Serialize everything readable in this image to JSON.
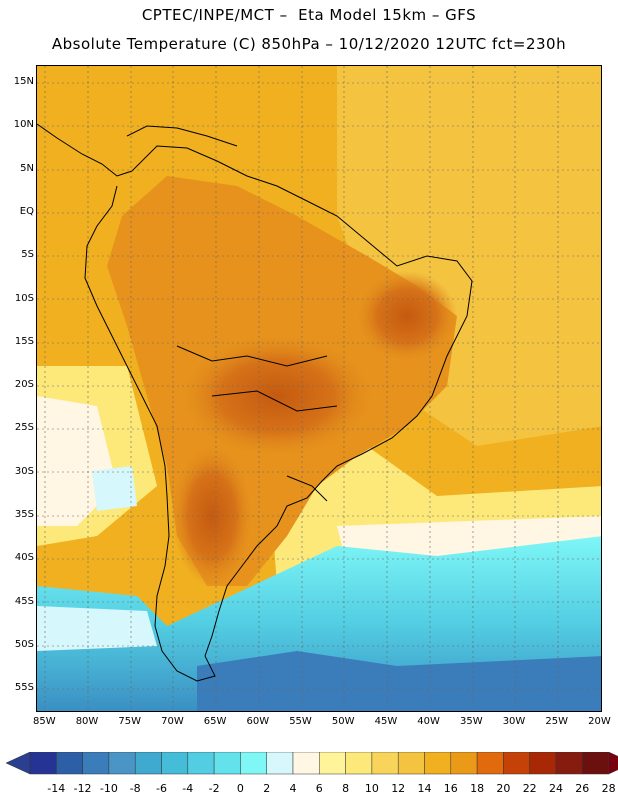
{
  "header": {
    "line1": "CPTEC/INPE/MCT –  Eta Model 15km – GFS",
    "line2": "Absolute Temperature (C) 850hPa – 10/12/2020 12UTC fct=230h"
  },
  "map": {
    "lat_labels": [
      "15N",
      "10N",
      "5N",
      "EQ",
      "5S",
      "10S",
      "15S",
      "20S",
      "25S",
      "30S",
      "35S",
      "40S",
      "45S",
      "50S",
      "55S"
    ],
    "lon_labels": [
      "85W",
      "80W",
      "75W",
      "70W",
      "65W",
      "60W",
      "55W",
      "50W",
      "45W",
      "40W",
      "35W",
      "30W",
      "25W",
      "20W"
    ]
  },
  "colorbar": {
    "labels": [
      "-14",
      "-12",
      "-10",
      "-8",
      "-6",
      "-4",
      "-2",
      "0",
      "2",
      "4",
      "6",
      "8",
      "10",
      "12",
      "14",
      "16",
      "18",
      "20",
      "22",
      "24",
      "26",
      "28"
    ],
    "colors": [
      "#253494",
      "#2c5fa6",
      "#3a7dba",
      "#4a95c6",
      "#3fa9cf",
      "#45bcd8",
      "#52cde2",
      "#63e2ec",
      "#7ff7f7",
      "#d6f7fb",
      "#fff6e3",
      "#fff49a",
      "#fde97a",
      "#f8d55a",
      "#f4c340",
      "#f0b020",
      "#eb9a18",
      "#e06a0c",
      "#c44208",
      "#a82806",
      "#861c10",
      "#6b0f0f"
    ],
    "under_color": "#2a3f8f",
    "over_color": "#7a0010"
  }
}
